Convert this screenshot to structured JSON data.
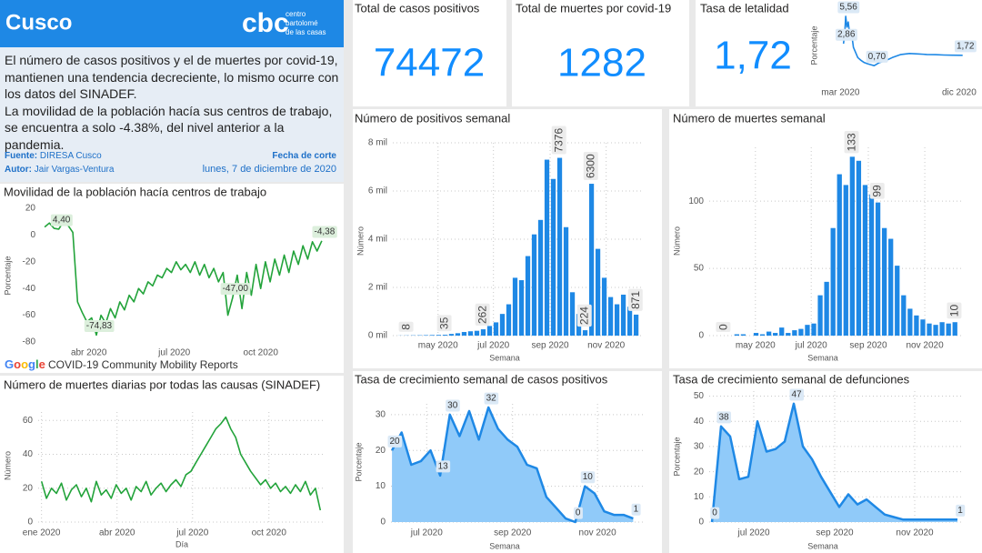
{
  "header": {
    "title": "Cusco",
    "logo": "cbc",
    "logo_text": [
      "centro",
      "bartolomé",
      "de las casas"
    ]
  },
  "summary": {
    "paragraphs": [
      "El número de casos positivos y el de muertes por covid-19, mantienen una tendencia decreciente, lo mismo ocurre con los datos del SINADEF.",
      "La movilidad de la población hacía sus centros de trabajo, se encuentra a solo -4.38%, del nivel anterior a la pandemia."
    ],
    "source_label": "Fuente:",
    "source": "DIRESA Cusco",
    "author_label": "Autor:",
    "author": "Jair Vargas-Ventura",
    "cutoff_label": "Fecha de corte",
    "cutoff": "lunes, 7 de diciembre de 2020"
  },
  "kpis": [
    {
      "title": "Total de casos positivos",
      "value": 74472
    },
    {
      "title": "Total de muertes por covid-19",
      "value": 1282
    },
    {
      "title": "Tasa de letalidad",
      "value": 1.72,
      "label": "1,72"
    }
  ],
  "chart_data": [
    {
      "type": "line",
      "title": "Movilidad de la población hacía centros de trabajo",
      "y_label": "Porcentaje",
      "color": "#22a33a",
      "label_bg": "#dcefdc",
      "grid": false,
      "source_brand": "Google",
      "source": "COVID-19 Community Mobility Reports",
      "x": [
        44,
        49,
        54,
        59,
        64,
        69,
        74,
        79,
        84,
        89,
        94,
        99,
        104,
        109,
        114,
        119,
        124,
        129,
        134,
        139,
        144,
        149,
        154,
        159,
        164,
        169,
        174,
        179,
        184,
        189,
        194,
        199,
        204,
        209,
        214,
        219,
        224,
        229,
        234,
        239,
        244,
        249,
        254,
        259,
        264,
        269,
        274,
        279,
        284,
        289,
        294,
        299,
        304,
        309,
        314,
        319,
        324,
        329,
        334,
        339
      ],
      "values": [
        6,
        9,
        5,
        4.4,
        10,
        7,
        2,
        -50,
        -58,
        -65,
        -62,
        -74.83,
        -60,
        -66,
        -55,
        -62,
        -50,
        -56,
        -45,
        -50,
        -40,
        -44,
        -35,
        -38,
        -30,
        -32,
        -25,
        -28,
        -20,
        -26,
        -22,
        -28,
        -20,
        -30,
        -22,
        -32,
        -25,
        -35,
        -28,
        -60,
        -47,
        -30,
        -55,
        -28,
        -45,
        -22,
        -40,
        -20,
        -35,
        -18,
        -30,
        -15,
        -28,
        -12,
        -22,
        -8,
        -18,
        -5,
        -12,
        -4.38
      ],
      "value_labels": {
        "3": "4,40",
        "11": "-74,83",
        "40": "-47,00",
        "59": "-4,38"
      },
      "xlim": [
        40,
        342
      ],
      "ylim": [
        -80,
        20
      ],
      "xticks": [
        {
          "value": 91,
          "label": "abr 2020"
        },
        {
          "value": 182,
          "label": "jul 2020"
        },
        {
          "value": 274,
          "label": "oct 2020"
        }
      ],
      "yticks": [
        20,
        0,
        -20,
        -40,
        -60,
        -80
      ]
    },
    {
      "type": "line",
      "title": "Número de muertes diarias por todas las causas (SINADEF)",
      "y_label": "Número",
      "x_label": "Día",
      "color": "#22a33a",
      "grid": true,
      "x": [
        0,
        6,
        12,
        18,
        24,
        30,
        36,
        42,
        48,
        54,
        60,
        66,
        72,
        78,
        84,
        90,
        96,
        102,
        108,
        114,
        120,
        126,
        132,
        138,
        144,
        150,
        156,
        162,
        168,
        174,
        180,
        186,
        192,
        198,
        204,
        210,
        216,
        222,
        228,
        234,
        240,
        246,
        252,
        258,
        264,
        270,
        276,
        282,
        288,
        294,
        300,
        306,
        312,
        318,
        324,
        330,
        336
      ],
      "values": [
        24,
        14,
        20,
        17,
        23,
        13,
        19,
        22,
        15,
        20,
        12,
        24,
        16,
        19,
        14,
        22,
        17,
        20,
        13,
        21,
        18,
        24,
        16,
        20,
        23,
        18,
        22,
        25,
        21,
        28,
        30,
        35,
        40,
        45,
        50,
        55,
        58,
        62,
        55,
        50,
        40,
        35,
        30,
        26,
        22,
        25,
        20,
        23,
        18,
        21,
        17,
        22,
        18,
        24,
        16,
        20,
        7
      ],
      "xlim": [
        -4,
        340
      ],
      "ylim": [
        0,
        65
      ],
      "xticks": [
        {
          "value": 0,
          "label": "ene 2020"
        },
        {
          "value": 91,
          "label": "abr 2020"
        },
        {
          "value": 182,
          "label": "jul 2020"
        },
        {
          "value": 274,
          "label": "oct 2020"
        }
      ],
      "yticks": [
        0,
        20,
        40,
        60
      ]
    },
    {
      "type": "line",
      "y_label": "Porcentaje",
      "color": "#1e88e5",
      "label_bg": "#dbe9f6",
      "grid": false,
      "x": [
        67,
        70,
        72,
        75,
        78,
        82,
        86,
        90,
        95,
        100,
        108,
        115,
        122,
        130,
        138,
        150,
        165,
        180,
        200,
        220,
        240,
        260,
        280,
        300,
        320,
        343
      ],
      "values": [
        2.86,
        4,
        5.56,
        4.5,
        5,
        3.5,
        3.8,
        2.5,
        2,
        1.5,
        1.2,
        1,
        0.9,
        0.8,
        0.7,
        1,
        1.2,
        1.5,
        1.8,
        1.9,
        1.85,
        1.8,
        1.78,
        1.75,
        1.73,
        1.72
      ],
      "value_labels": {
        "0": "2,86",
        "2": "5,56",
        "14": "0,70",
        "25": "1,72"
      },
      "xlim": [
        55,
        350
      ],
      "ylim": [
        0,
        6
      ],
      "xticks": [
        {
          "value": 60,
          "label": "mar 2020"
        },
        {
          "value": 335,
          "label": "dic 2020"
        }
      ]
    },
    {
      "type": "bar",
      "title": "Número de positivos semanal",
      "y_label": "Número",
      "x_label": "Semana",
      "color": "#1e88e5",
      "grid": true,
      "x": [
        12,
        13,
        14,
        15,
        16,
        17,
        18,
        19,
        20,
        21,
        22,
        23,
        24,
        25,
        26,
        27,
        28,
        29,
        30,
        31,
        32,
        33,
        34,
        35,
        36,
        37,
        38,
        39,
        40,
        41,
        42,
        43,
        44,
        45,
        46,
        47,
        48,
        49
      ],
      "values": [
        5,
        8,
        12,
        15,
        20,
        25,
        30,
        35,
        70,
        100,
        150,
        180,
        200,
        262,
        400,
        550,
        900,
        1300,
        2400,
        2300,
        3300,
        4200,
        4800,
        7300,
        6500,
        7376,
        4500,
        1800,
        900,
        224,
        6300,
        3600,
        2400,
        1600,
        1300,
        1700,
        1200,
        871
      ],
      "value_labels": {
        "1": "8",
        "7": "35",
        "13": "262",
        "25": "7376",
        "29": "224",
        "30": "6300",
        "37": "871"
      },
      "xlim": [
        10.8,
        50.2
      ],
      "ylim": [
        0,
        8000
      ],
      "xticks": [
        {
          "value": 17.9,
          "label": "may 2020"
        },
        {
          "value": 26.6,
          "label": "jul 2020"
        },
        {
          "value": 35.5,
          "label": "sep 2020"
        },
        {
          "value": 44.3,
          "label": "nov 2020"
        }
      ],
      "yticks": [
        {
          "value": 0,
          "label": "0 mil"
        },
        {
          "value": 2000,
          "label": "2 mil"
        },
        {
          "value": 4000,
          "label": "4 mil"
        },
        {
          "value": 6000,
          "label": "6 mil"
        },
        {
          "value": 8000,
          "label": "8 mil"
        }
      ]
    },
    {
      "type": "bar",
      "title": "Número de muertes semanal",
      "y_label": "Número",
      "x_label": "Semana",
      "color": "#1e88e5",
      "grid": true,
      "x": [
        12,
        13,
        14,
        15,
        16,
        17,
        18,
        19,
        20,
        21,
        22,
        23,
        24,
        25,
        26,
        27,
        28,
        29,
        30,
        31,
        32,
        33,
        34,
        35,
        36,
        37,
        38,
        39,
        40,
        41,
        42,
        43,
        44,
        45,
        46,
        47,
        48,
        49
      ],
      "values": [
        0,
        0,
        0,
        1,
        1,
        0,
        2,
        1,
        3,
        2,
        6,
        2,
        4,
        5,
        8,
        9,
        30,
        40,
        80,
        120,
        112,
        133,
        130,
        112,
        105,
        99,
        80,
        72,
        52,
        30,
        20,
        15,
        12,
        9,
        8,
        10,
        9,
        10
      ],
      "value_labels": {
        "1": "0",
        "21": "133",
        "25": "99",
        "37": "10"
      },
      "xlim": [
        10.7,
        50.1
      ],
      "ylim": [
        0,
        140
      ],
      "xticks": [
        {
          "value": 17.9,
          "label": "may 2020"
        },
        {
          "value": 26.6,
          "label": "jul 2020"
        },
        {
          "value": 35.5,
          "label": "sep 2020"
        },
        {
          "value": 44.3,
          "label": "nov 2020"
        }
      ],
      "yticks": [
        0,
        50,
        100
      ]
    },
    {
      "type": "area",
      "title": "Tasa de crecimiento semanal de casos positivos",
      "y_label": "Porcentaje",
      "x_label": "Semana",
      "color": "#1e88e5",
      "fill": "#90caf9",
      "label_bg": "#dbe9f6",
      "grid": true,
      "x": [
        23,
        24,
        25,
        26,
        27,
        28,
        29,
        30,
        31,
        32,
        33,
        34,
        35,
        36,
        37,
        38,
        39,
        40,
        41,
        42,
        43,
        44,
        45,
        46,
        47,
        48
      ],
      "values": [
        20,
        25,
        16,
        17,
        20,
        13,
        30,
        24,
        31,
        23,
        32,
        26,
        23,
        21,
        16,
        15,
        7,
        4,
        1,
        0,
        10,
        8,
        3,
        2,
        2,
        1
      ],
      "value_labels": {
        "0": "20",
        "5": "13",
        "6": "30",
        "10": "32",
        "19": "0",
        "20": "10",
        "25": "1"
      },
      "xlim": [
        22.9,
        49
      ],
      "ylim": [
        0,
        33
      ],
      "xticks": [
        {
          "value": 26.6,
          "label": "jul 2020"
        },
        {
          "value": 35.5,
          "label": "sep 2020"
        },
        {
          "value": 44.3,
          "label": "nov 2020"
        }
      ],
      "yticks": [
        0,
        10,
        20,
        30
      ]
    },
    {
      "type": "area",
      "title": "Tasa de crecimiento semanal de defunciones",
      "y_label": "Porcentaje",
      "x_label": "Semana",
      "color": "#1e88e5",
      "fill": "#90caf9",
      "label_bg": "#dbe9f6",
      "grid": true,
      "x": [
        22,
        23,
        24,
        25,
        26,
        27,
        28,
        29,
        30,
        31,
        32,
        33,
        34,
        35,
        36,
        37,
        38,
        39,
        40,
        41,
        42,
        43,
        44,
        45,
        46,
        47,
        48,
        49
      ],
      "values": [
        0,
        38,
        34,
        17,
        18,
        40,
        28,
        29,
        32,
        47,
        30,
        25,
        18,
        12,
        6,
        11,
        7,
        9,
        6,
        3,
        2,
        1,
        1,
        1,
        1,
        1,
        1,
        1
      ],
      "value_labels": {
        "0": "0",
        "1": "38",
        "9": "47",
        "27": "1"
      },
      "xlim": [
        21.7,
        49.5
      ],
      "ylim": [
        0,
        52
      ],
      "xticks": [
        {
          "value": 26.6,
          "label": "jul 2020"
        },
        {
          "value": 35.5,
          "label": "sep 2020"
        },
        {
          "value": 44.3,
          "label": "nov 2020"
        }
      ],
      "yticks": [
        0,
        10,
        20,
        30,
        40,
        50
      ]
    }
  ]
}
